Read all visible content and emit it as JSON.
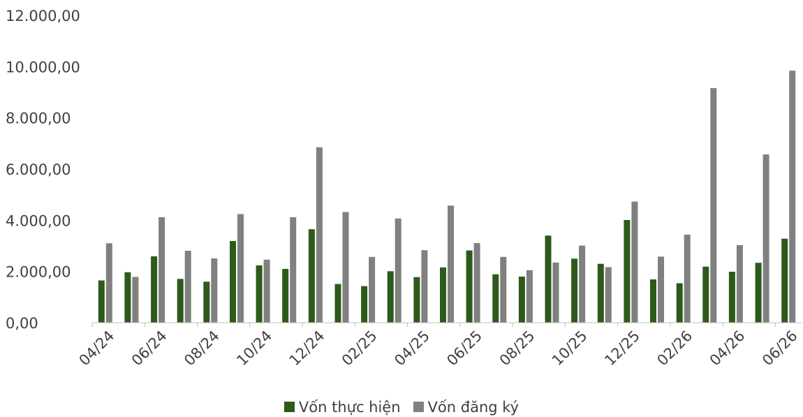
{
  "chart_data": {
    "type": "bar",
    "categories": [
      "04/24",
      "05/24",
      "06/24",
      "07/24",
      "08/24",
      "09/24",
      "10/24",
      "11/24",
      "12/24",
      "01/25",
      "02/25",
      "03/25",
      "04/25",
      "05/25",
      "06/25",
      "07/25",
      "08/25",
      "09/25",
      "10/25",
      "11/25",
      "12/25",
      "01/26",
      "02/26",
      "03/26",
      "04/26",
      "05/26",
      "06/26"
    ],
    "tick_labels": [
      "04/24",
      "06/24",
      "08/24",
      "10/24",
      "12/24",
      "02/25",
      "04/25",
      "06/25",
      "08/25",
      "10/25",
      "12/25",
      "02/26",
      "04/26",
      "06/26"
    ],
    "series": [
      {
        "name": "Vốn thực hiện",
        "color": "#2d5a1b",
        "values": [
          1650,
          1970,
          2590,
          1710,
          1600,
          3190,
          2240,
          2100,
          3650,
          1510,
          1430,
          2010,
          1780,
          2160,
          2820,
          1890,
          1800,
          3400,
          2500,
          2300,
          4010,
          1690,
          1540,
          2190,
          1990,
          2340,
          3280
        ]
      },
      {
        "name": "Vốn đăng ký",
        "color": "#808080",
        "values": [
          3100,
          1790,
          4120,
          2810,
          2510,
          4240,
          2460,
          4120,
          6850,
          4320,
          2570,
          4070,
          2830,
          4570,
          3110,
          2570,
          2050,
          2350,
          3010,
          2170,
          4730,
          2580,
          3440,
          9160,
          3030,
          6570,
          9840
        ]
      }
    ],
    "ylim": [
      0,
      12000
    ],
    "yticks": [
      "0,00",
      "2.000,00",
      "4.000,00",
      "6.000,00",
      "8.000,00",
      "10.000,00",
      "12.000,00"
    ],
    "ytick_values": [
      0,
      2000,
      4000,
      6000,
      8000,
      10000,
      12000
    ],
    "grid": false,
    "legend": "bottom-center"
  }
}
